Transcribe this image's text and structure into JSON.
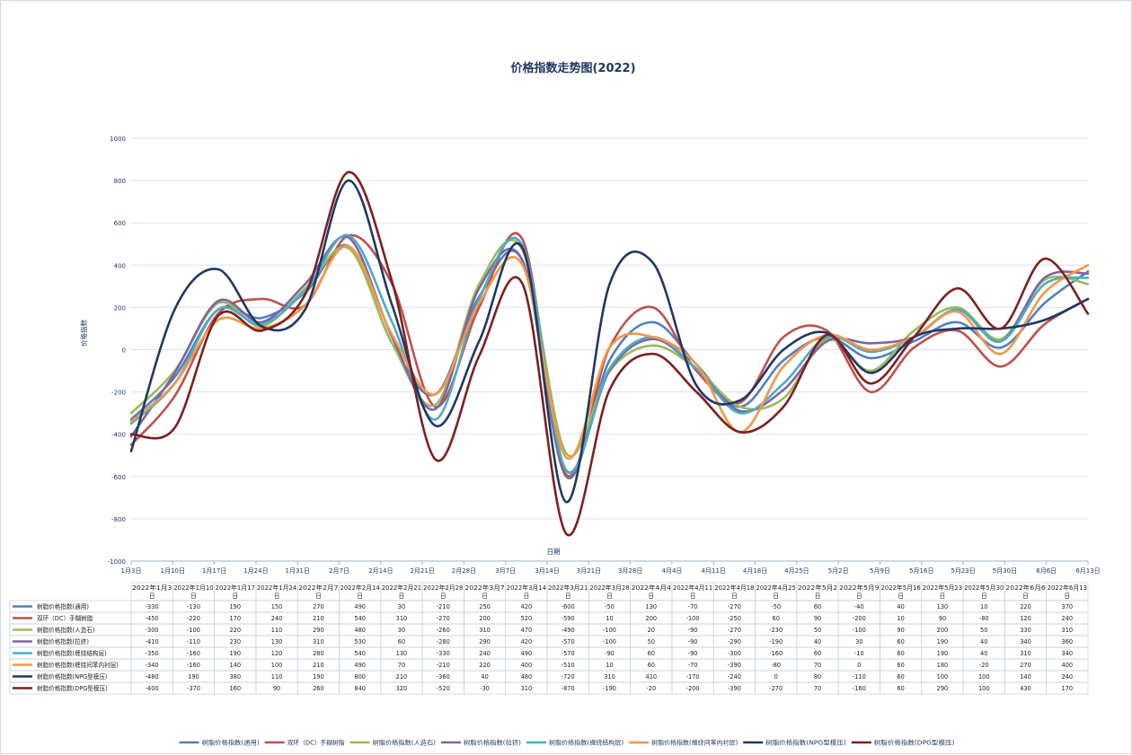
{
  "chart_data": {
    "type": "line",
    "title": "价格指数走势图(2022)",
    "xlabel": "日期",
    "ylabel": "价格指数",
    "ylim": [
      -1000,
      1000
    ],
    "yticks": [
      1000,
      800,
      600,
      400,
      200,
      0,
      -200,
      -400,
      -600,
      -800,
      -1000
    ],
    "grid": true,
    "legend_position": "bottom",
    "axis_categories": [
      "1月3日",
      "1月10日",
      "1月17日",
      "1月24日",
      "1月31日",
      "2月7日",
      "2月14日",
      "2月21日",
      "2月28日",
      "3月7日",
      "3月14日",
      "3月21日",
      "3月28日",
      "4月4日",
      "4月11日",
      "4月18日",
      "4月25日",
      "5月2日",
      "5月9日",
      "5月16日",
      "5月23日",
      "5月30日",
      "6月6日",
      "6月13日"
    ],
    "table_categories": [
      "2022年1月3日",
      "2022年1月10日",
      "2022年1月17日",
      "2022年1月24日",
      "2022年2月7日",
      "2022年2月14日",
      "2022年2月21日",
      "2022年2月28日",
      "2022年3月7日",
      "2022年3月14日",
      "2022年3月21日",
      "2022年3月28日",
      "2022年4月4日",
      "2022年4月11日",
      "2022年4月18日",
      "2022年4月25日",
      "2022年5月2日",
      "2022年5月9日",
      "2022年5月16日",
      "2022年5月23日",
      "2022年5月30日",
      "2022年6月6日",
      "2022年6月13日"
    ],
    "series": [
      {
        "name": "树脂价格指数(通用)",
        "color": "#4f81bd",
        "values": [
          -330,
          -130,
          190,
          150,
          270,
          490,
          30,
          -210,
          250,
          420,
          -600,
          -50,
          130,
          -70,
          -270,
          -50,
          60,
          -40,
          40,
          130,
          10,
          220,
          370
        ]
      },
      {
        "name": "双环（DC）手糊树脂",
        "color": "#c0504d",
        "values": [
          -450,
          -220,
          170,
          240,
          210,
          540,
          310,
          -270,
          200,
          520,
          -590,
          10,
          200,
          -100,
          -250,
          60,
          90,
          -200,
          10,
          90,
          -80,
          120,
          240
        ]
      },
      {
        "name": "树脂价格指数(人造石)",
        "color": "#9bbb59",
        "values": [
          -300,
          -100,
          220,
          110,
          290,
          480,
          30,
          -260,
          310,
          470,
          -490,
          -100,
          20,
          -90,
          -270,
          -230,
          50,
          -100,
          90,
          200,
          50,
          330,
          310
        ]
      },
      {
        "name": "树脂价格指数(拉挤)",
        "color": "#8064a2",
        "values": [
          -410,
          -110,
          230,
          130,
          310,
          530,
          60,
          -280,
          290,
          420,
          -570,
          -100,
          50,
          -90,
          -290,
          -190,
          40,
          30,
          60,
          190,
          40,
          340,
          360
        ]
      },
      {
        "name": "树脂价格指数(缠绕结构层)",
        "color": "#4bacc6",
        "values": [
          -350,
          -160,
          190,
          120,
          280,
          540,
          130,
          -330,
          240,
          490,
          -570,
          -90,
          60,
          -90,
          -300,
          -160,
          60,
          -10,
          60,
          190,
          40,
          310,
          340
        ]
      },
      {
        "name": "树脂价格指数(缠绕间苯内衬层)",
        "color": "#f79646",
        "values": [
          -340,
          -160,
          140,
          100,
          210,
          490,
          70,
          -210,
          220,
          400,
          -510,
          10,
          60,
          -70,
          -390,
          -80,
          70,
          0,
          60,
          180,
          -20,
          270,
          400
        ]
      },
      {
        "name": "树脂价格指数(NPG型模压)",
        "color": "#1f3864",
        "values": [
          -480,
          190,
          380,
          110,
          190,
          800,
          210,
          -360,
          40,
          480,
          -720,
          310,
          410,
          -170,
          -240,
          0,
          80,
          -110,
          60,
          100,
          100,
          140,
          240
        ]
      },
      {
        "name": "树脂价格指数(DPG型模压)",
        "color": "#7f1f1f",
        "values": [
          -400,
          -370,
          160,
          90,
          260,
          840,
          320,
          -520,
          -30,
          310,
          -870,
          -190,
          -20,
          -200,
          -390,
          -270,
          70,
          -160,
          60,
          290,
          100,
          430,
          170
        ]
      }
    ]
  }
}
